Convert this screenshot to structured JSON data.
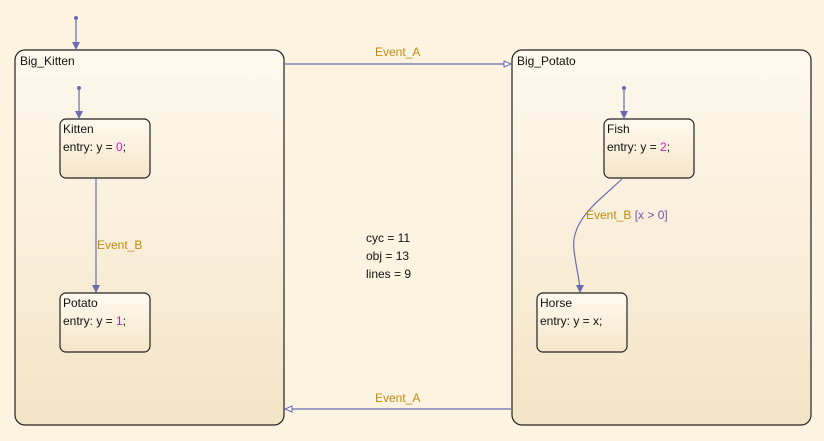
{
  "states": {
    "big_kitten": {
      "name": "Big_Kitten"
    },
    "big_potato": {
      "name": "Big_Potato"
    },
    "kitten": {
      "name": "Kitten",
      "entry_prefix": "entry: y = ",
      "entry_value": "0",
      "entry_suffix": ";"
    },
    "potato": {
      "name": "Potato",
      "entry_prefix": "entry: y = ",
      "entry_value": "1",
      "entry_suffix": ";"
    },
    "fish": {
      "name": "Fish",
      "entry_prefix": "entry: y = ",
      "entry_value": "2",
      "entry_suffix": ";"
    },
    "horse": {
      "name": "Horse",
      "entry_text": "entry: y = x;"
    }
  },
  "transitions": {
    "top_event": "Event_A",
    "bottom_event": "Event_A",
    "kitten_to_potato_event": "Event_B",
    "fish_to_horse_event": "Event_B",
    "fish_to_horse_condition": "[x > 0]"
  },
  "stats": {
    "cyc": "cyc = 11",
    "obj": "obj = 13",
    "lines": "lines = 9"
  },
  "colors": {
    "background": "#fdf3e1",
    "state_border": "#222222",
    "transition": "#6a6ab0",
    "event_label": "#c08a10",
    "numeric_literal": "#c020c0",
    "condition": "#7a4fb0"
  }
}
